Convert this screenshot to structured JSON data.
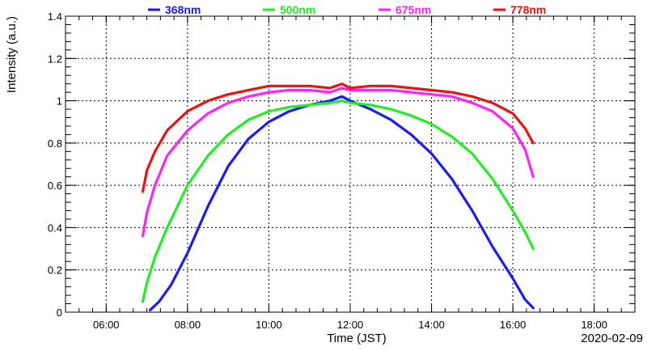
{
  "chart_data": {
    "type": "line",
    "xlabel": "Time (JST)",
    "ylabel": "Intensity (a.u.)",
    "date_label": "2020-02-09",
    "x_units": "hours",
    "xlim": [
      5.0,
      19.0
    ],
    "ylim": [
      0,
      1.4
    ],
    "x_ticks": [
      {
        "value": 6,
        "label": "06:00"
      },
      {
        "value": 8,
        "label": "08:00"
      },
      {
        "value": 10,
        "label": "10:00"
      },
      {
        "value": 12,
        "label": "12:00"
      },
      {
        "value": 14,
        "label": "14:00"
      },
      {
        "value": 16,
        "label": "16:00"
      },
      {
        "value": 18,
        "label": "18:00"
      }
    ],
    "y_ticks": [
      {
        "value": 0,
        "label": "0"
      },
      {
        "value": 0.2,
        "label": "0.2"
      },
      {
        "value": 0.4,
        "label": "0.4"
      },
      {
        "value": 0.6,
        "label": "0.6"
      },
      {
        "value": 0.8,
        "label": "0.8"
      },
      {
        "value": 1.0,
        "label": "1"
      },
      {
        "value": 1.2,
        "label": "1.2"
      },
      {
        "value": 1.4,
        "label": "1.4"
      }
    ],
    "grid": true,
    "legend_position": "top",
    "series": [
      {
        "name": "368nm",
        "color": "#1a1aff",
        "x": [
          7.08,
          7.3,
          7.6,
          8.0,
          8.5,
          9.0,
          9.5,
          10.0,
          10.5,
          11.0,
          11.5,
          11.8,
          12.0,
          12.5,
          13.0,
          13.5,
          14.0,
          14.5,
          15.0,
          15.5,
          16.0,
          16.3,
          16.5
        ],
        "y": [
          0.01,
          0.05,
          0.13,
          0.28,
          0.5,
          0.69,
          0.82,
          0.9,
          0.95,
          0.98,
          1.0,
          1.02,
          1.0,
          0.96,
          0.91,
          0.84,
          0.75,
          0.63,
          0.48,
          0.31,
          0.16,
          0.06,
          0.02
        ]
      },
      {
        "name": "500nm",
        "color": "#22ee22",
        "x": [
          6.9,
          7.0,
          7.2,
          7.5,
          8.0,
          8.5,
          9.0,
          9.5,
          10.0,
          10.5,
          11.0,
          11.5,
          11.8,
          12.0,
          12.5,
          13.0,
          13.5,
          14.0,
          14.5,
          15.0,
          15.5,
          16.0,
          16.3,
          16.5
        ],
        "y": [
          0.05,
          0.14,
          0.26,
          0.4,
          0.6,
          0.74,
          0.84,
          0.91,
          0.95,
          0.97,
          0.98,
          0.99,
          1.0,
          0.99,
          0.98,
          0.96,
          0.93,
          0.89,
          0.83,
          0.75,
          0.63,
          0.48,
          0.38,
          0.3
        ]
      },
      {
        "name": "675nm",
        "color": "#ff22ff",
        "x": [
          6.9,
          7.0,
          7.2,
          7.5,
          8.0,
          8.5,
          9.0,
          9.5,
          10.0,
          10.5,
          11.0,
          11.5,
          11.8,
          12.0,
          12.5,
          13.0,
          13.5,
          14.0,
          14.5,
          15.0,
          15.5,
          16.0,
          16.3,
          16.5
        ],
        "y": [
          0.36,
          0.47,
          0.6,
          0.74,
          0.86,
          0.94,
          0.99,
          1.02,
          1.04,
          1.05,
          1.05,
          1.04,
          1.06,
          1.05,
          1.05,
          1.05,
          1.04,
          1.03,
          1.02,
          0.99,
          0.95,
          0.87,
          0.77,
          0.64
        ]
      },
      {
        "name": "778nm",
        "color": "#ee1111",
        "x": [
          6.9,
          7.0,
          7.2,
          7.5,
          8.0,
          8.5,
          9.0,
          9.5,
          10.0,
          10.5,
          11.0,
          11.5,
          11.8,
          12.0,
          12.5,
          13.0,
          13.5,
          14.0,
          14.5,
          15.0,
          15.5,
          16.0,
          16.3,
          16.5
        ],
        "y": [
          0.57,
          0.67,
          0.76,
          0.86,
          0.95,
          1.0,
          1.03,
          1.05,
          1.07,
          1.07,
          1.07,
          1.06,
          1.08,
          1.06,
          1.07,
          1.07,
          1.06,
          1.05,
          1.04,
          1.02,
          0.99,
          0.94,
          0.87,
          0.8
        ]
      }
    ]
  }
}
